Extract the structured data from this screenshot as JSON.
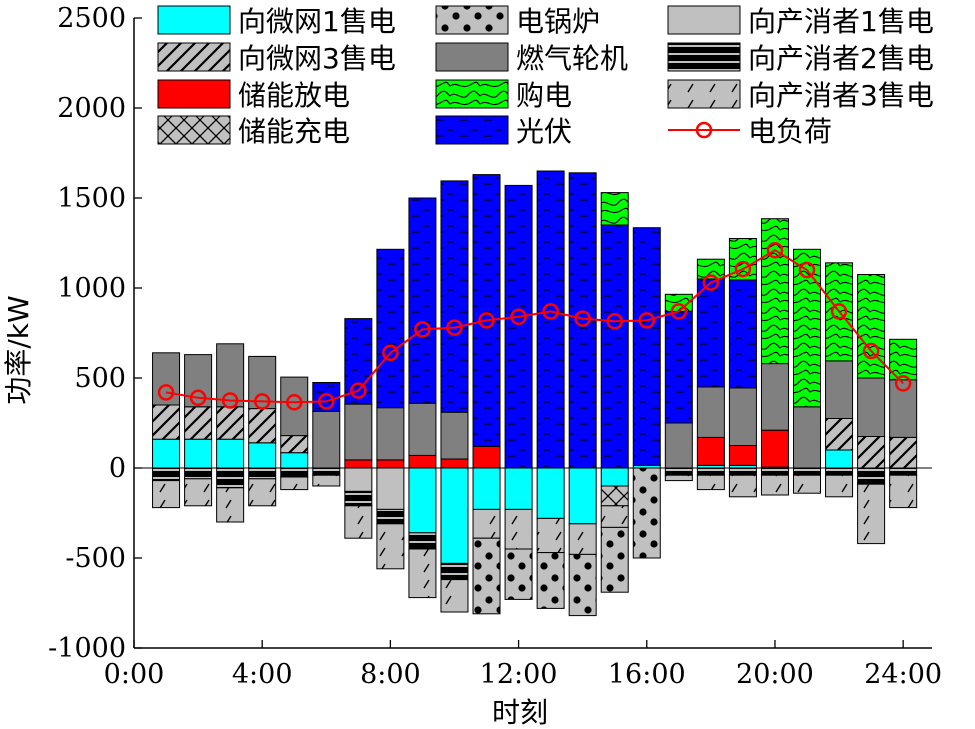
{
  "chart_data": {
    "type": "bar",
    "stacked": true,
    "xlabel": "时刻",
    "ylabel": "功率/kW",
    "ylim": [
      -1000,
      2500
    ],
    "yticks": [
      -1000,
      -500,
      0,
      500,
      1000,
      1500,
      2000,
      2500
    ],
    "xlim": [
      0,
      24.9
    ],
    "xticks": [
      0,
      4,
      8,
      12,
      16,
      20,
      24
    ],
    "xtick_labels": [
      "0:00",
      "4:00",
      "8:00",
      "12:00",
      "16:00",
      "20:00",
      "24:00"
    ],
    "x": [
      1,
      2,
      3,
      4,
      5,
      6,
      7,
      8,
      9,
      10,
      11,
      12,
      13,
      14,
      15,
      16,
      17,
      18,
      19,
      20,
      21,
      22,
      23,
      24
    ],
    "legend_position": "top",
    "series": [
      {
        "name": "向微网1售电",
        "color": "#00ffff",
        "pattern": "solid",
        "side": "positive",
        "values": [
          160,
          160,
          160,
          140,
          85,
          0,
          0,
          0,
          0,
          0,
          0,
          0,
          0,
          0,
          0,
          15,
          0,
          15,
          15,
          5,
          0,
          100,
          0,
          0
        ]
      },
      {
        "name": "储能放电",
        "color": "#ff0000",
        "pattern": "solid",
        "side": "positive",
        "values": [
          0,
          0,
          0,
          0,
          0,
          0,
          45,
          45,
          70,
          50,
          120,
          0,
          0,
          0,
          0,
          0,
          0,
          155,
          110,
          205,
          0,
          0,
          0,
          0
        ]
      },
      {
        "name": "向微网3售电",
        "color": "#c0c0c0",
        "pattern": "diag",
        "side": "positive",
        "values": [
          190,
          180,
          180,
          190,
          95,
          0,
          0,
          0,
          0,
          0,
          0,
          0,
          0,
          0,
          0,
          0,
          0,
          0,
          0,
          0,
          0,
          175,
          175,
          170
        ]
      },
      {
        "name": "燃气轮机",
        "color": "#808080",
        "pattern": "solid",
        "side": "positive",
        "values": [
          290,
          290,
          350,
          290,
          325,
          315,
          310,
          290,
          290,
          260,
          0,
          0,
          0,
          0,
          0,
          0,
          250,
          280,
          320,
          370,
          340,
          320,
          325,
          320
        ]
      },
      {
        "name": "光伏",
        "color": "#0000ff",
        "pattern": "dash",
        "side": "positive",
        "values": [
          0,
          0,
          0,
          0,
          0,
          160,
          475,
          880,
          1140,
          1285,
          1510,
          1570,
          1650,
          1640,
          1350,
          1320,
          620,
          600,
          600,
          0,
          0,
          0,
          0,
          0
        ]
      },
      {
        "name": "购电",
        "color": "#00ff00",
        "pattern": "wave",
        "side": "positive",
        "values": [
          0,
          0,
          0,
          0,
          0,
          0,
          0,
          0,
          0,
          0,
          0,
          0,
          0,
          0,
          180,
          0,
          95,
          110,
          230,
          805,
          875,
          545,
          575,
          225
        ]
      },
      {
        "name": "向产消者1售电",
        "color": "#c0c0c0",
        "pattern": "solid",
        "side": "negative",
        "values": [
          0,
          0,
          0,
          0,
          0,
          0,
          130,
          230,
          0,
          0,
          0,
          0,
          0,
          0,
          0,
          0,
          0,
          0,
          0,
          0,
          0,
          0,
          0,
          0
        ]
      },
      {
        "name": "向微网1售电",
        "color": "#00ffff",
        "pattern": "solid",
        "side": "negative",
        "values": [
          0,
          0,
          0,
          0,
          0,
          0,
          0,
          0,
          360,
          530,
          230,
          230,
          280,
          310,
          100,
          0,
          0,
          0,
          0,
          0,
          0,
          0,
          0,
          0
        ]
      },
      {
        "name": "储能充电",
        "color": "#c0c0c0",
        "pattern": "cross",
        "side": "negative",
        "values": [
          0,
          0,
          0,
          0,
          0,
          0,
          0,
          0,
          0,
          0,
          0,
          0,
          0,
          0,
          110,
          0,
          0,
          0,
          0,
          0,
          0,
          0,
          0,
          0
        ]
      },
      {
        "name": "向产消者2售电",
        "color": "#000000",
        "pattern": "hbars",
        "side": "negative",
        "values": [
          70,
          60,
          110,
          60,
          50,
          40,
          80,
          80,
          90,
          90,
          0,
          0,
          0,
          0,
          0,
          0,
          40,
          40,
          40,
          40,
          40,
          40,
          90,
          40
        ]
      },
      {
        "name": "向产消者3售电",
        "color": "#c0c0c0",
        "pattern": "slash",
        "side": "negative",
        "values": [
          150,
          150,
          190,
          150,
          70,
          60,
          180,
          250,
          270,
          180,
          160,
          220,
          190,
          170,
          120,
          0,
          30,
          80,
          120,
          110,
          100,
          120,
          330,
          180
        ]
      },
      {
        "name": "电锅炉",
        "color": "#c0c0c0",
        "pattern": "dots",
        "side": "negative",
        "values": [
          0,
          0,
          0,
          0,
          0,
          0,
          0,
          0,
          0,
          0,
          420,
          280,
          310,
          340,
          360,
          500,
          0,
          0,
          0,
          0,
          0,
          0,
          0,
          0
        ]
      },
      {
        "name": "电负荷",
        "color": "#ff0000",
        "pattern": "line",
        "side": "line",
        "values": [
          420,
          390,
          375,
          370,
          365,
          370,
          430,
          640,
          770,
          780,
          820,
          840,
          870,
          830,
          815,
          820,
          870,
          1030,
          1105,
          1210,
          1100,
          870,
          650,
          470
        ]
      }
    ],
    "legend": [
      {
        "name": "向微网1售电",
        "color": "#00ffff",
        "pattern": "solid"
      },
      {
        "name": "电锅炉",
        "color": "#c0c0c0",
        "pattern": "dots"
      },
      {
        "name": "向产消者1售电",
        "color": "#c0c0c0",
        "pattern": "solid"
      },
      {
        "name": "向微网3售电",
        "color": "#c0c0c0",
        "pattern": "diag"
      },
      {
        "name": "燃气轮机",
        "color": "#808080",
        "pattern": "solid"
      },
      {
        "name": "向产消者2售电",
        "color": "#000000",
        "pattern": "hbars"
      },
      {
        "name": "储能放电",
        "color": "#ff0000",
        "pattern": "solid"
      },
      {
        "name": "购电",
        "color": "#00ff00",
        "pattern": "wave"
      },
      {
        "name": "向产消者3售电",
        "color": "#c0c0c0",
        "pattern": "slash"
      },
      {
        "name": "储能充电",
        "color": "#c0c0c0",
        "pattern": "cross"
      },
      {
        "name": "光伏",
        "color": "#0000ff",
        "pattern": "dash"
      },
      {
        "name": "电负荷",
        "color": "#ff0000",
        "pattern": "line"
      }
    ]
  }
}
